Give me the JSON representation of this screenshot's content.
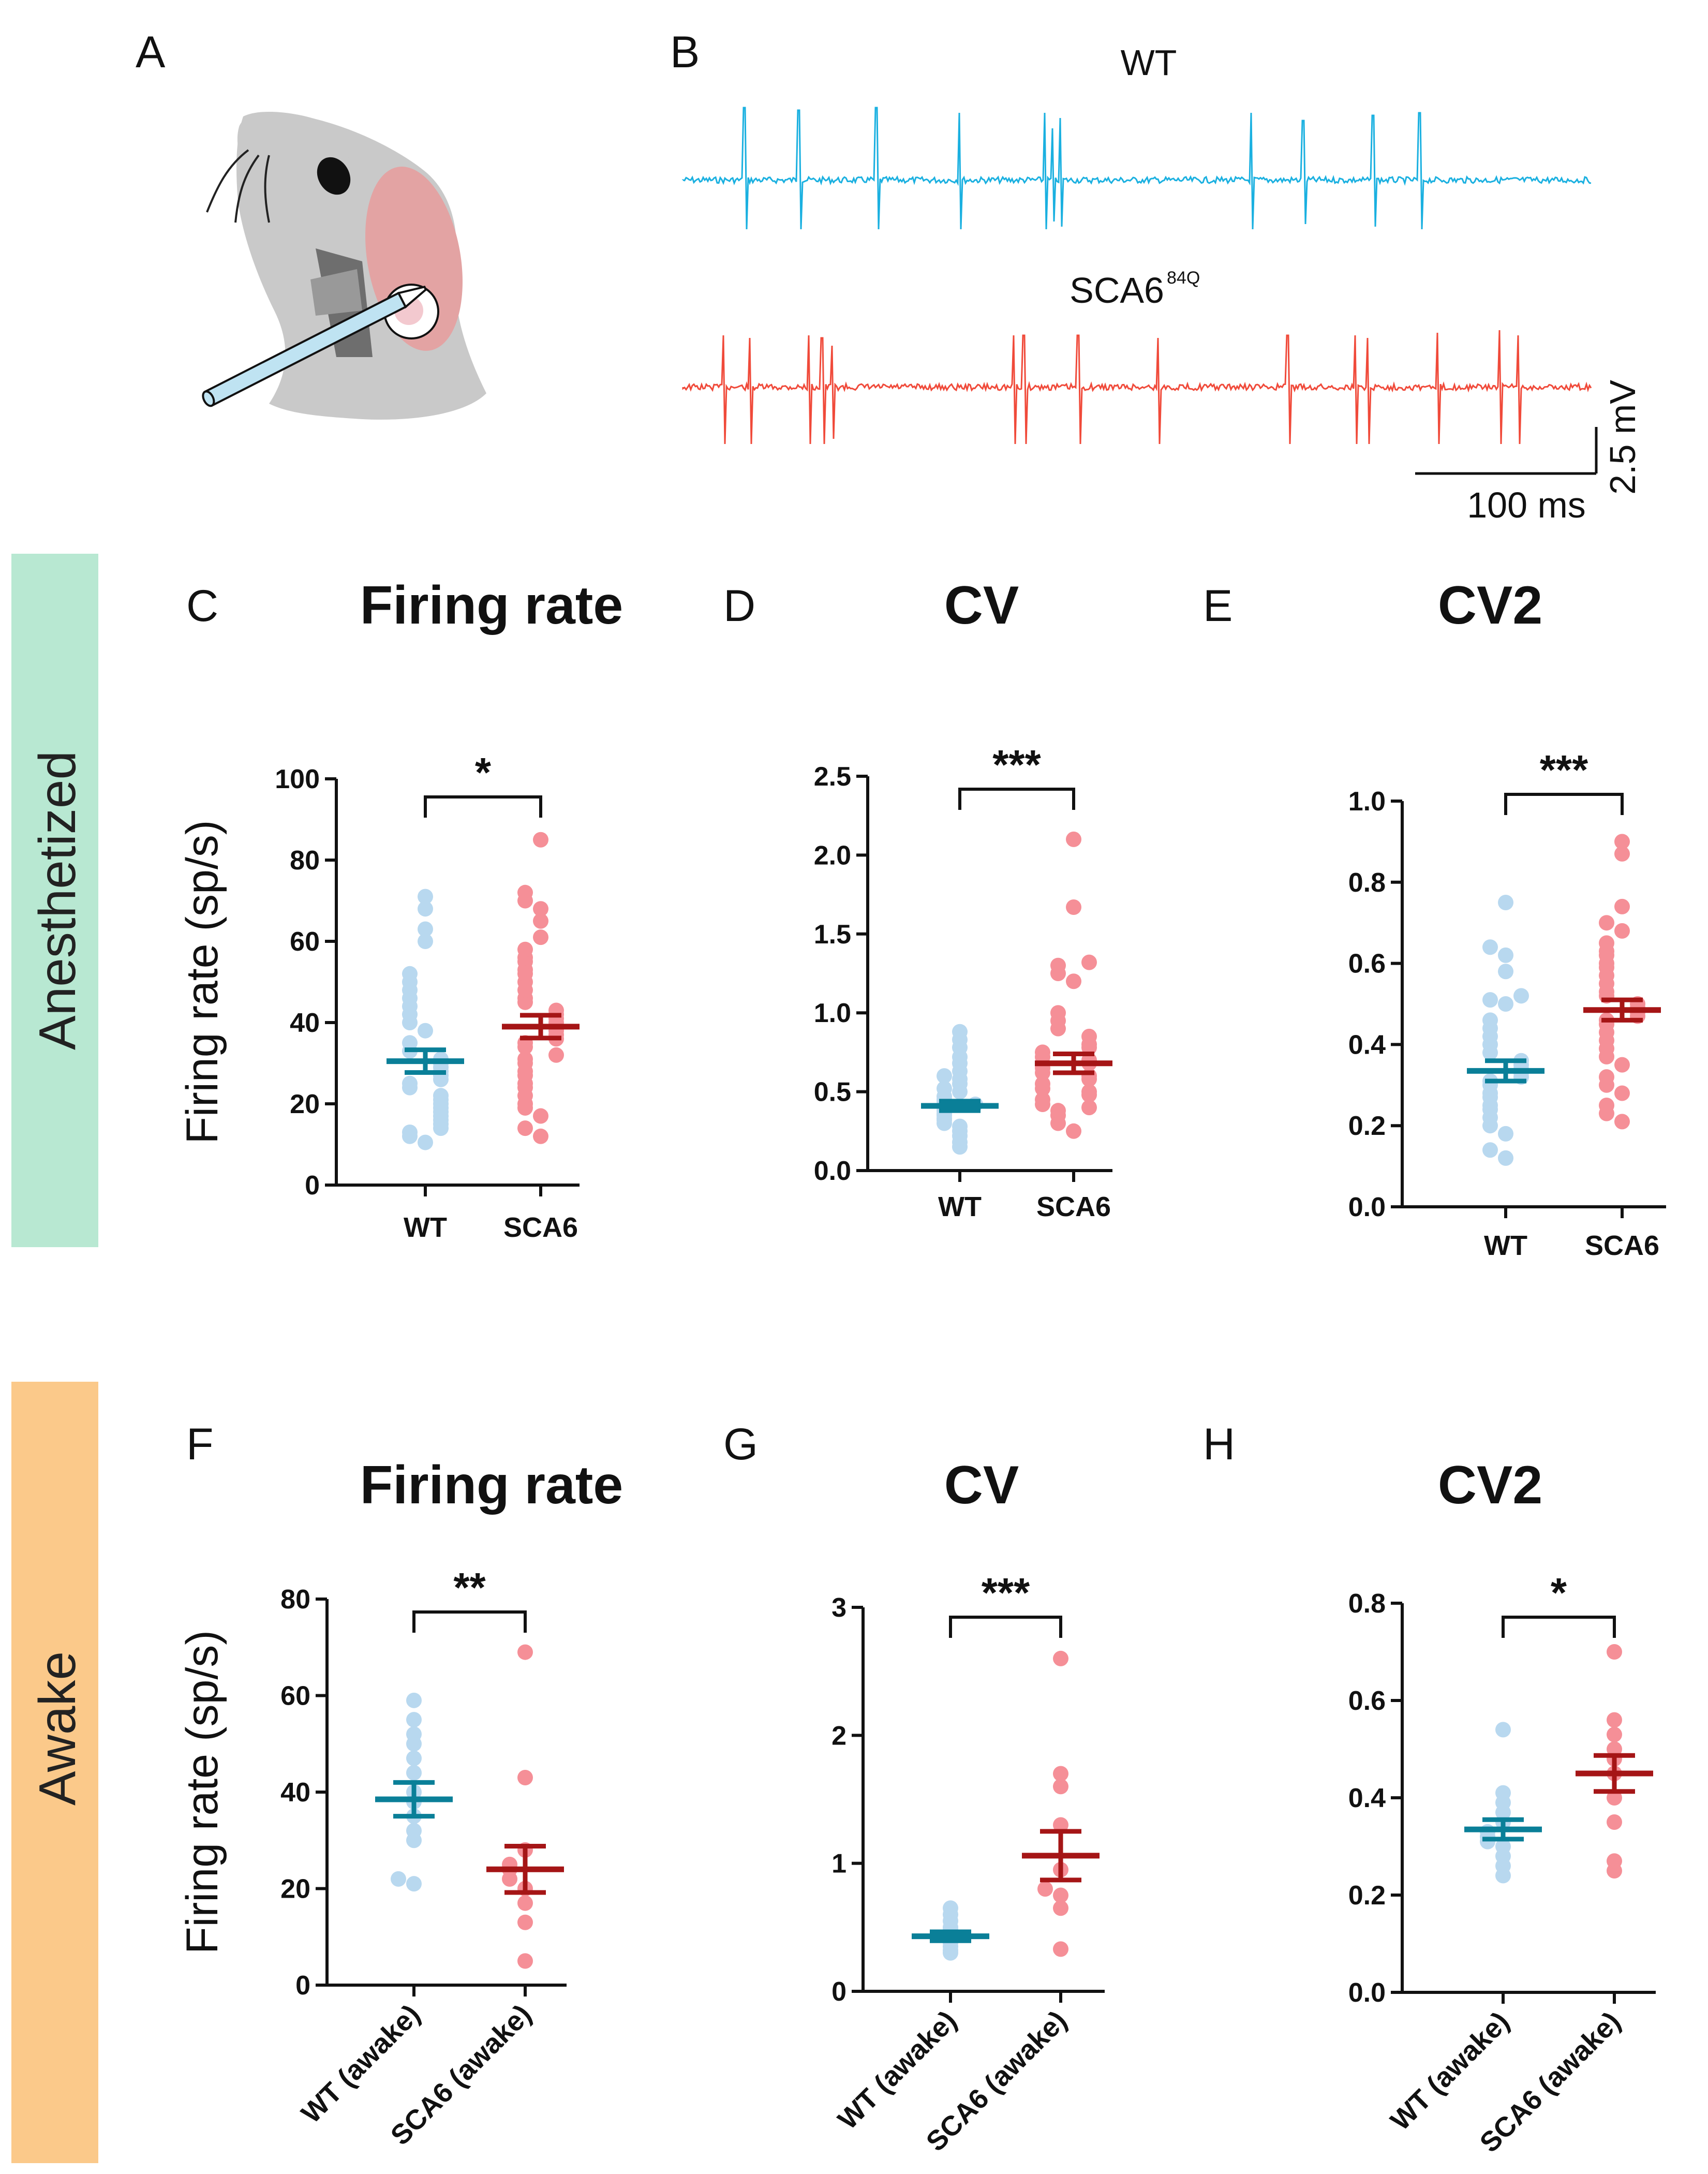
{
  "colors": {
    "wt_point": "#b8d8ef",
    "wt_mean": "#0a7f98",
    "sca6_point": "#f58f97",
    "sca6_mean": "#a51516",
    "wt_trace": "#1ab0e0",
    "sca6_trace": "#f04a3a",
    "anesthetized_band": "#b8e8d2",
    "awake_band": "#fbc98a",
    "mouse_body": "#c9c9c9",
    "mouse_ear": "#e3a3a3",
    "pipette": "#bfe3f2"
  },
  "panels": {
    "A": "A",
    "B": "B",
    "C": "C",
    "D": "D",
    "E": "E",
    "F": "F",
    "G": "G",
    "H": "H"
  },
  "traces": {
    "wt_label": "WT",
    "sca6_label": "SCA6",
    "sca6_superscript": "84Q",
    "scale_voltage": "2.5 mV",
    "scale_time": "100 ms"
  },
  "row_labels": {
    "anesthetized": "Anesthetized",
    "awake": "Awake"
  },
  "chart_data": [
    {
      "id": "C",
      "type": "scatter",
      "title": "Firing rate",
      "ylabel": "Firing rate (sp/s)",
      "categories": [
        "WT",
        "SCA6"
      ],
      "ylim": [
        0,
        100
      ],
      "yticks": [
        "0",
        "20",
        "40",
        "60",
        "80",
        "100"
      ],
      "significance": "*",
      "series": [
        {
          "name": "WT",
          "mean": 30.5,
          "sem": 2.8,
          "values": [
            10.5,
            12,
            13,
            14,
            15,
            16,
            17,
            18,
            19,
            20,
            21,
            22,
            24,
            25,
            26,
            27,
            28,
            29,
            30,
            31,
            33,
            35,
            38,
            40,
            42,
            44,
            46,
            48,
            50,
            52,
            60,
            63,
            68,
            71
          ]
        },
        {
          "name": "SCA6",
          "mean": 39,
          "sem": 2.8,
          "values": [
            12,
            14,
            17,
            19,
            20,
            22,
            24,
            25,
            27,
            28,
            30,
            31,
            32,
            34,
            35,
            36,
            37,
            38,
            39,
            40,
            41,
            42,
            43,
            45,
            46,
            48,
            50,
            52,
            53,
            55,
            56,
            58,
            61,
            65,
            68,
            70,
            72,
            85
          ]
        }
      ]
    },
    {
      "id": "D",
      "type": "scatter",
      "title": "CV",
      "ylabel": "",
      "categories": [
        "WT",
        "SCA6"
      ],
      "ylim": [
        0,
        2.5
      ],
      "yticks": [
        "0.0",
        "0.5",
        "1.0",
        "1.5",
        "2.0",
        "2.5"
      ],
      "significance": "***",
      "series": [
        {
          "name": "WT",
          "mean": 0.41,
          "sem": 0.03,
          "values": [
            0.15,
            0.18,
            0.22,
            0.25,
            0.28,
            0.3,
            0.32,
            0.33,
            0.35,
            0.36,
            0.38,
            0.4,
            0.41,
            0.42,
            0.44,
            0.45,
            0.47,
            0.5,
            0.52,
            0.55,
            0.58,
            0.6,
            0.63,
            0.68,
            0.72,
            0.78,
            0.83,
            0.88
          ]
        },
        {
          "name": "SCA6",
          "mean": 0.68,
          "sem": 0.06,
          "values": [
            0.25,
            0.3,
            0.35,
            0.38,
            0.4,
            0.42,
            0.45,
            0.48,
            0.5,
            0.52,
            0.55,
            0.58,
            0.6,
            0.62,
            0.65,
            0.68,
            0.7,
            0.72,
            0.75,
            0.78,
            0.8,
            0.85,
            0.9,
            0.95,
            1.0,
            1.2,
            1.25,
            1.3,
            1.32,
            1.67,
            2.1
          ]
        }
      ]
    },
    {
      "id": "E",
      "type": "scatter",
      "title": "CV2",
      "ylabel": "",
      "categories": [
        "WT",
        "SCA6"
      ],
      "ylim": [
        0,
        1.0
      ],
      "yticks": [
        "0.0",
        "0.2",
        "0.4",
        "0.6",
        "0.8",
        "1.0"
      ],
      "significance": "***",
      "series": [
        {
          "name": "WT",
          "mean": 0.335,
          "sem": 0.025,
          "values": [
            0.12,
            0.14,
            0.18,
            0.2,
            0.22,
            0.24,
            0.25,
            0.27,
            0.28,
            0.3,
            0.31,
            0.32,
            0.33,
            0.34,
            0.35,
            0.36,
            0.38,
            0.4,
            0.42,
            0.44,
            0.46,
            0.5,
            0.51,
            0.52,
            0.58,
            0.62,
            0.64,
            0.75
          ]
        },
        {
          "name": "SCA6",
          "mean": 0.485,
          "sem": 0.025,
          "values": [
            0.21,
            0.23,
            0.25,
            0.28,
            0.3,
            0.32,
            0.35,
            0.37,
            0.39,
            0.41,
            0.43,
            0.45,
            0.46,
            0.47,
            0.48,
            0.49,
            0.5,
            0.52,
            0.53,
            0.55,
            0.57,
            0.59,
            0.6,
            0.62,
            0.63,
            0.65,
            0.68,
            0.7,
            0.74,
            0.87,
            0.9
          ]
        }
      ]
    },
    {
      "id": "F",
      "type": "scatter",
      "title": "Firing rate",
      "ylabel": "Firing rate (sp/s)",
      "categories": [
        "WT (awake)",
        "SCA6 (awake)"
      ],
      "ylim": [
        0,
        80
      ],
      "yticks": [
        "0",
        "20",
        "40",
        "60",
        "80"
      ],
      "significance": "**",
      "series": [
        {
          "name": "WT (awake)",
          "mean": 38.5,
          "sem": 3.5,
          "values": [
            21,
            22,
            30,
            32,
            35,
            38,
            40,
            44,
            47,
            50,
            52,
            55,
            59
          ]
        },
        {
          "name": "SCA6 (awake)",
          "mean": 24,
          "sem": 4.8,
          "values": [
            5,
            13,
            17,
            20,
            22,
            24,
            25,
            28,
            43,
            69
          ]
        }
      ]
    },
    {
      "id": "G",
      "type": "scatter",
      "title": "CV",
      "ylabel": "",
      "categories": [
        "WT (awake)",
        "SCA6 (awake)"
      ],
      "ylim": [
        0,
        3
      ],
      "yticks": [
        "0",
        "1",
        "2",
        "3"
      ],
      "significance": "***",
      "series": [
        {
          "name": "WT (awake)",
          "mean": 0.43,
          "sem": 0.035,
          "values": [
            0.3,
            0.32,
            0.35,
            0.38,
            0.4,
            0.42,
            0.45,
            0.48,
            0.5,
            0.55,
            0.6,
            0.65
          ]
        },
        {
          "name": "SCA6 (awake)",
          "mean": 1.06,
          "sem": 0.19,
          "values": [
            0.33,
            0.65,
            0.75,
            0.8,
            0.95,
            1.3,
            1.6,
            1.7,
            2.6
          ]
        }
      ]
    },
    {
      "id": "H",
      "type": "scatter",
      "title": "CV2",
      "ylabel": "",
      "categories": [
        "WT (awake)",
        "SCA6 (awake)"
      ],
      "ylim": [
        0,
        0.8
      ],
      "yticks": [
        "0.0",
        "0.2",
        "0.4",
        "0.6",
        "0.8"
      ],
      "significance": "*",
      "series": [
        {
          "name": "WT (awake)",
          "mean": 0.335,
          "sem": 0.02,
          "values": [
            0.24,
            0.26,
            0.28,
            0.3,
            0.31,
            0.32,
            0.33,
            0.35,
            0.37,
            0.39,
            0.41,
            0.54
          ]
        },
        {
          "name": "SCA6 (awake)",
          "mean": 0.45,
          "sem": 0.037,
          "values": [
            0.25,
            0.27,
            0.35,
            0.4,
            0.45,
            0.48,
            0.5,
            0.53,
            0.56,
            0.7
          ]
        }
      ]
    }
  ]
}
